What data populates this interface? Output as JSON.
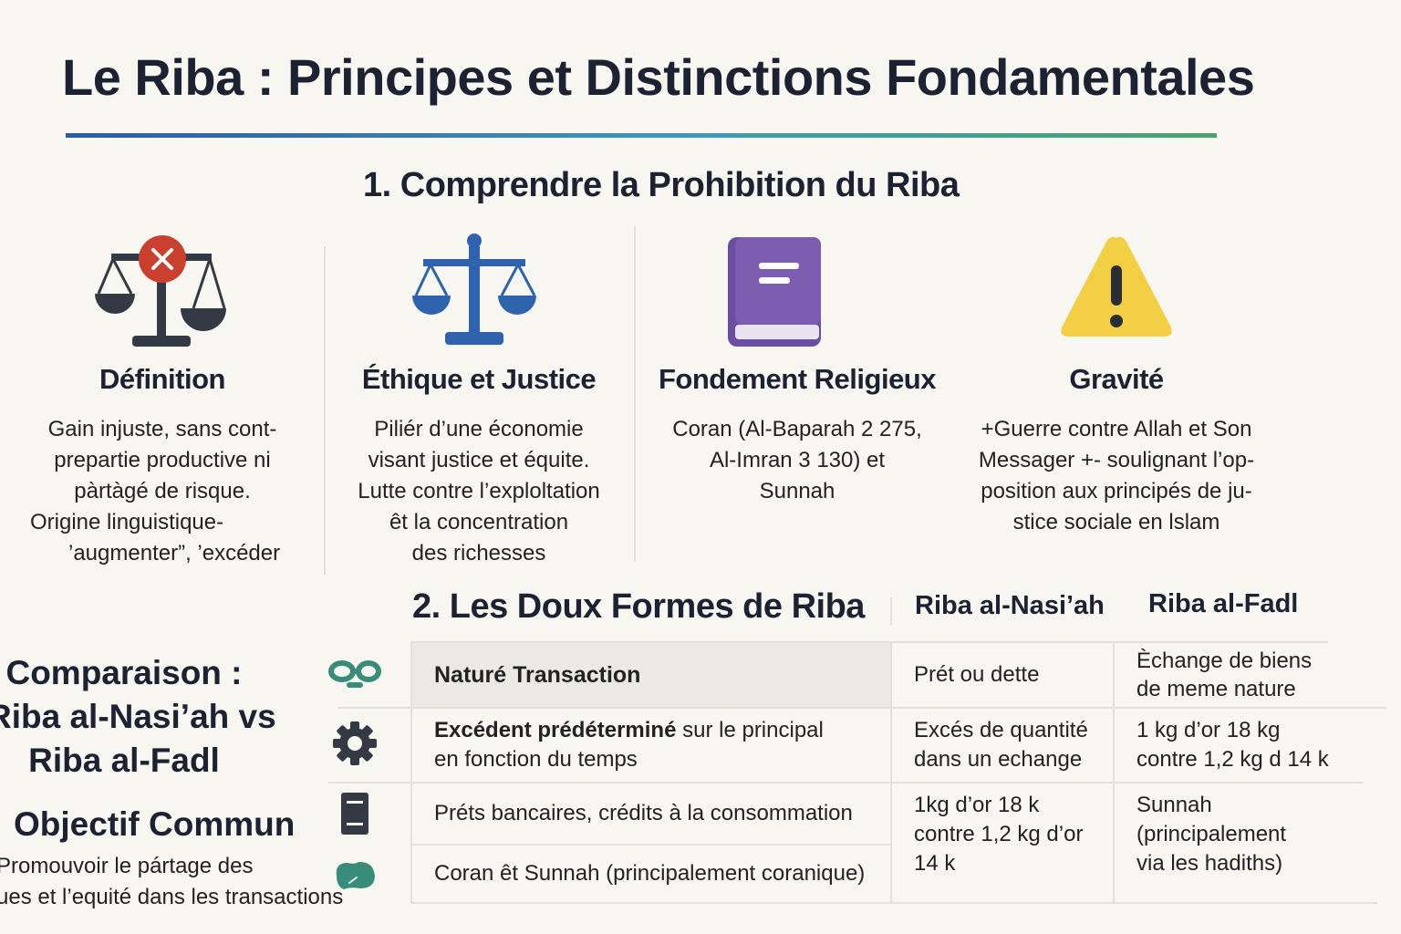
{
  "title": "Le Riba : Principes et Distinctions Fondamentales",
  "section1": {
    "heading": "1. Comprendre la Prohibition du Riba",
    "columns": [
      {
        "icon": "scales-with-x-icon",
        "title": "Définition",
        "lines": [
          "Gain injuste, sans cont-",
          "prepartie productive ni",
          "pàrtàgé de risque.",
          "Origine linguistique-",
          "’augmenter”, ’excéder"
        ]
      },
      {
        "icon": "scales-of-justice-icon",
        "title": "Éthique et Justice",
        "lines": [
          "Piliér d’une économie",
          "visant justice et équite.",
          "Lutte contre l’explo­ltation",
          "êt la concentration",
          "des richesses"
        ]
      },
      {
        "icon": "book-icon",
        "title": "Fondement Religieux",
        "lines": [
          "Coran (Al-Baparah 2 275,",
          "Al-Imran 3 130) et",
          "Sunnah"
        ]
      },
      {
        "icon": "warning-icon",
        "title": "Gravité",
        "lines": [
          "+Guerre contre Allah et Son",
          "Messager +- soulignant l’op-",
          "position aux principés de ju-",
          "stice sociale en lslam"
        ]
      }
    ]
  },
  "section2": {
    "heading": "2. Les Doux Formes de Riba",
    "col_headers": [
      "Riba al-Nasi’ah",
      "Riba al-Fadl"
    ],
    "rows": [
      {
        "icon": "glasses-icon",
        "label": [
          "Naturé Transaction"
        ],
        "nasiah": [
          "Prét ou dette"
        ],
        "fadl": [
          "Èchange de biens",
          "de meme nature"
        ]
      },
      {
        "icon": "gear-icon",
        "label_bold": "Excédent prédéterminé",
        "label": [
          "sur le principal",
          "en fonction du temps"
        ],
        "nasiah": [
          "Excés de quantité",
          "dans un echange"
        ],
        "fadl": [
          "1 kg d’or 18 kg",
          "contre 1,2 kg d 14 k"
        ]
      },
      {
        "icon": "document-icon",
        "label": [
          "Préts bancaires, crédits à la consommation"
        ],
        "nasiah": [
          "1kg d’or 18 k",
          "contre 1,2 kg d’or",
          "14 k"
        ],
        "fadl": [
          "Sunnah",
          "(principalement",
          "via les hadiths)"
        ]
      },
      {
        "icon": "leaf-blob-icon",
        "label": [
          "Coran êt Sunnah (principalement coranique)"
        ]
      }
    ]
  },
  "left_panel": {
    "comparison_title": [
      "Comparaison :",
      "Riba al-Nasi’ah vs",
      "Riba al-Fadl"
    ],
    "objective_title": "Objectif Commun",
    "objective_lines": [
      "Promouvoir le pártage des",
      "ues et l’equité dans les transactions"
    ]
  },
  "colors": {
    "navy": "#1c2231",
    "blue": "#2f63ad",
    "purple": "#7b5cae",
    "yellow": "#f3cf45",
    "red": "#c9402f",
    "teal": "#3a8c7a",
    "dark": "#343a43",
    "background": "#f8f6f0"
  }
}
